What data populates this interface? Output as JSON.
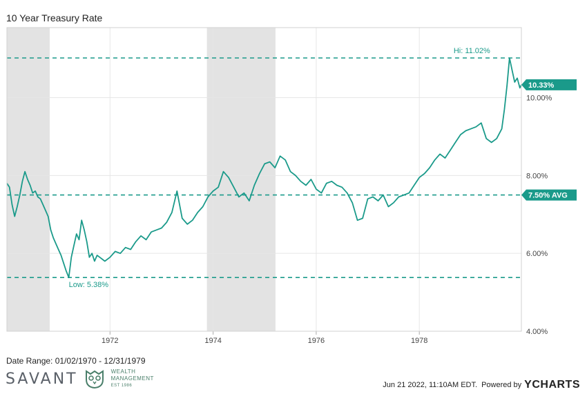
{
  "date_range": "Date Range: 01/02/1970 - 12/31/1979",
  "timestamp": "Jun 21 2022, 11:10AM EDT.",
  "powered_by": "Powered by",
  "ycharts_brand": "YCHARTS",
  "brand": {
    "name": "SAVANT",
    "sub_line1": "WEALTH",
    "sub_line2": "MANAGEMENT",
    "est": "EST 1986"
  },
  "colors": {
    "series": "#1a9a8a",
    "recession": "#e3e3e3",
    "grid": "#e6e6e6"
  },
  "chart_data": {
    "type": "line",
    "title": "10 Year Treasury Rate",
    "xlim": [
      1970.0,
      1979.98
    ],
    "ylim": [
      4.0,
      11.8
    ],
    "x_ticks": [
      1972,
      1974,
      1976,
      1978
    ],
    "y_ticks": [
      4.0,
      6.0,
      8.0,
      10.0
    ],
    "y_tick_labels": [
      "4.00%",
      "6.00%",
      "8.00%",
      "10.00%"
    ],
    "recessions": [
      [
        1970.0,
        1970.83
      ],
      [
        1973.88,
        1975.21
      ]
    ],
    "reference_lines": [
      {
        "value": 11.02,
        "label": "Hi: 11.02%",
        "kind": "high"
      },
      {
        "value": 7.5,
        "label": "7.50% AVG",
        "kind": "avg"
      },
      {
        "value": 5.38,
        "label": "Low: 5.38%",
        "kind": "low"
      }
    ],
    "last_value": {
      "value": 10.33,
      "label": "10.33%"
    },
    "series": [
      {
        "x": [
          1970.0,
          1970.05,
          1970.1,
          1970.15,
          1970.2,
          1970.25,
          1970.3,
          1970.35,
          1970.4,
          1970.45,
          1970.5,
          1970.55,
          1970.6,
          1970.65,
          1970.7,
          1970.75,
          1970.8,
          1970.85,
          1970.9,
          1970.95,
          1971.0,
          1971.05,
          1971.1,
          1971.15,
          1971.2,
          1971.25,
          1971.3,
          1971.35,
          1971.4,
          1971.45,
          1971.5,
          1971.55,
          1971.6,
          1971.65,
          1971.7,
          1971.75,
          1971.8,
          1971.85,
          1971.9,
          1972.0,
          1972.1,
          1972.2,
          1972.3,
          1972.4,
          1972.5,
          1972.6,
          1972.7,
          1972.8,
          1972.9,
          1973.0,
          1973.1,
          1973.2,
          1973.3,
          1973.4,
          1973.5,
          1973.6,
          1973.7,
          1973.8,
          1973.9,
          1974.0,
          1974.1,
          1974.2,
          1974.3,
          1974.4,
          1974.5,
          1974.6,
          1974.7,
          1974.8,
          1974.9,
          1975.0,
          1975.1,
          1975.2,
          1975.3,
          1975.4,
          1975.5,
          1975.6,
          1975.7,
          1975.8,
          1975.9,
          1976.0,
          1976.1,
          1976.2,
          1976.3,
          1976.4,
          1976.5,
          1976.6,
          1976.7,
          1976.8,
          1976.9,
          1977.0,
          1977.1,
          1977.2,
          1977.3,
          1977.4,
          1977.5,
          1977.6,
          1977.7,
          1977.8,
          1977.9,
          1978.0,
          1978.1,
          1978.2,
          1978.3,
          1978.4,
          1978.5,
          1978.6,
          1978.7,
          1978.8,
          1978.9,
          1979.0,
          1979.1,
          1979.2,
          1979.3,
          1979.4,
          1979.5,
          1979.6,
          1979.65,
          1979.7,
          1979.75,
          1979.8,
          1979.85,
          1979.9,
          1979.95,
          1979.98
        ],
        "values": [
          7.8,
          7.7,
          7.25,
          6.95,
          7.2,
          7.5,
          7.85,
          8.1,
          7.9,
          7.75,
          7.55,
          7.6,
          7.45,
          7.4,
          7.25,
          7.1,
          6.95,
          6.6,
          6.4,
          6.25,
          6.1,
          5.95,
          5.75,
          5.55,
          5.38,
          5.9,
          6.2,
          6.5,
          6.35,
          6.85,
          6.6,
          6.3,
          5.9,
          6.0,
          5.8,
          5.95,
          5.9,
          5.85,
          5.8,
          5.9,
          6.05,
          6.0,
          6.15,
          6.1,
          6.3,
          6.45,
          6.35,
          6.55,
          6.6,
          6.65,
          6.8,
          7.05,
          7.6,
          6.9,
          6.75,
          6.85,
          7.05,
          7.2,
          7.45,
          7.6,
          7.7,
          8.1,
          7.95,
          7.7,
          7.45,
          7.55,
          7.35,
          7.75,
          8.05,
          8.3,
          8.35,
          8.2,
          8.5,
          8.4,
          8.1,
          8.0,
          7.85,
          7.75,
          7.9,
          7.65,
          7.55,
          7.8,
          7.85,
          7.75,
          7.7,
          7.55,
          7.3,
          6.85,
          6.9,
          7.4,
          7.45,
          7.35,
          7.5,
          7.2,
          7.3,
          7.45,
          7.5,
          7.55,
          7.75,
          7.95,
          8.05,
          8.2,
          8.4,
          8.55,
          8.45,
          8.65,
          8.85,
          9.05,
          9.15,
          9.2,
          9.25,
          9.35,
          8.95,
          8.85,
          8.95,
          9.2,
          9.7,
          10.3,
          11.02,
          10.7,
          10.4,
          10.5,
          10.25,
          10.33
        ]
      }
    ]
  }
}
